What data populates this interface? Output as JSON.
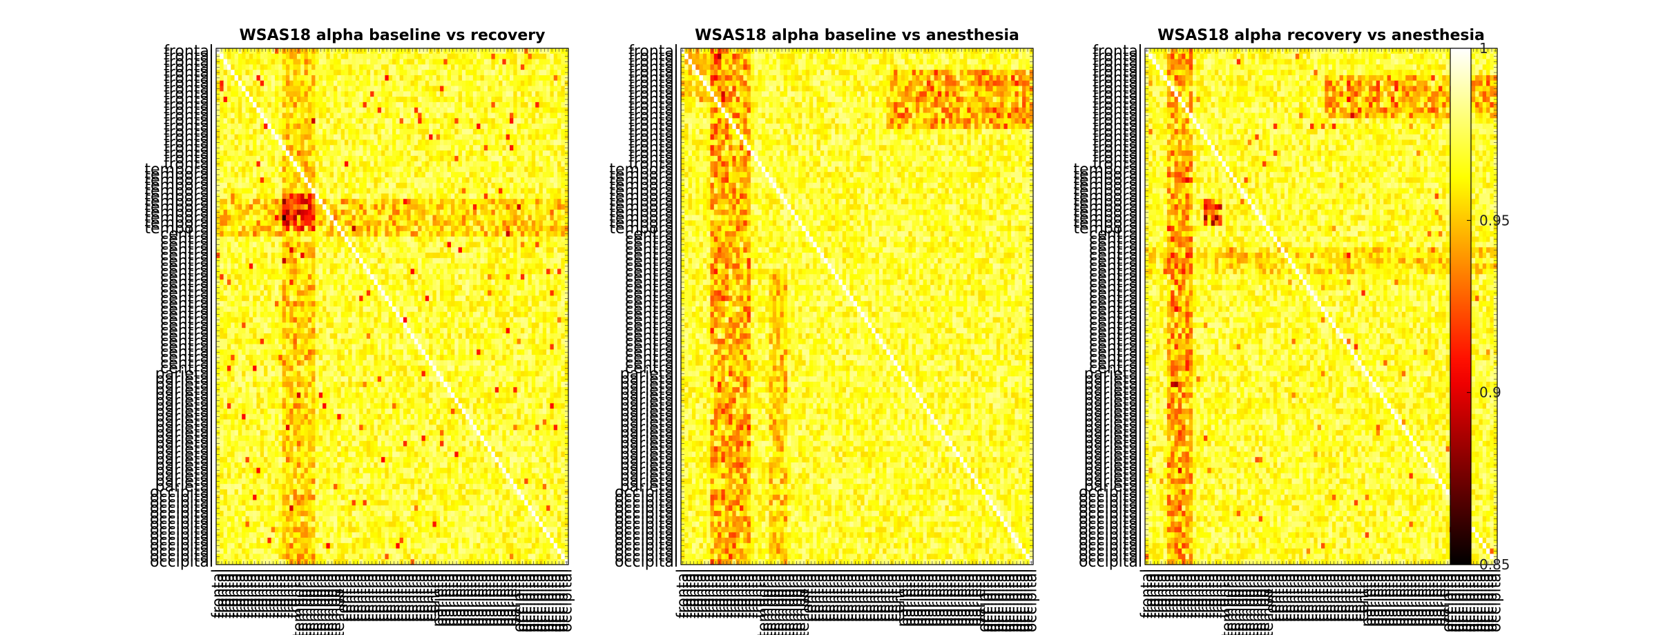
{
  "chart_data": {
    "type": "heatmap",
    "panels": [
      {
        "title": "WSAS18 alpha baseline vs recovery",
        "pattern": "cross"
      },
      {
        "title": "WSAS18 alpha baseline vs anesthesia",
        "pattern": "bands"
      },
      {
        "title": "WSAS18 alpha recovery vs anesthesia",
        "pattern": "mixed"
      }
    ],
    "channel_regions": [
      {
        "name": "frontal",
        "count": 22
      },
      {
        "name": "temporal",
        "count": 12
      },
      {
        "name": "central",
        "count": 26
      },
      {
        "name": "parietal",
        "count": 22
      },
      {
        "name": "occipital",
        "count": 14
      }
    ],
    "matrix_size": 96,
    "colormap": "hot",
    "colorbar": {
      "range": [
        0.85,
        1
      ],
      "ticks": [
        "1",
        "0.95",
        "0.9",
        "0.85"
      ],
      "tick_values": [
        1,
        0.95,
        0.9,
        0.85
      ]
    },
    "grid": false,
    "legend": "none"
  }
}
